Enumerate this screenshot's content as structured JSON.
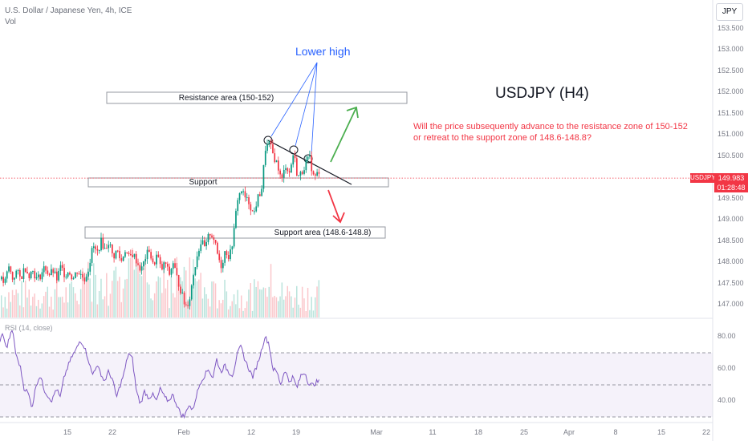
{
  "header": {
    "symbol_line": "U.S. Dollar / Japanese Yen, 4h, ICE",
    "vol_label": "Vol"
  },
  "currency_button": "JPY",
  "price_badge": {
    "symbol": "USDJPY",
    "price": "149.983",
    "countdown": "01:28:48"
  },
  "annotations": {
    "lower_high": "Lower high",
    "resistance_label": "Resistance area (150-152)",
    "support_label": "Support",
    "support_area_label": "Support area (148.6-148.8)",
    "title": "USDJPY (H4)",
    "question_line1": "Will the price subsequently advance to the resistance zone of 150-152",
    "question_line2": "or retreat to the support zone of 148.6-148.8?"
  },
  "rsi_label": "RSI (14, close)",
  "colors": {
    "up": "#089981",
    "down": "#f23645",
    "trend": "#131722",
    "rsi": "#7e57c2",
    "blue": "#2962ff",
    "arrow_up": "#4caf50"
  },
  "chart_data": [
    {
      "type": "candlestick",
      "y_ticks": [
        "153.500",
        "153.000",
        "152.500",
        "152.000",
        "151.500",
        "151.000",
        "150.500",
        "150.000",
        "149.500",
        "149.000",
        "148.500",
        "148.000",
        "147.500",
        "147.000"
      ],
      "x_ticks": [
        "15",
        "22",
        "Feb",
        "12",
        "19",
        "Mar",
        "11",
        "18",
        "25",
        "Apr",
        "8",
        "15",
        "22"
      ],
      "ylim": [
        146.75,
        153.8
      ],
      "last_price": 149.983,
      "zones": [
        {
          "name": "Resistance area (150-152)",
          "low": 151.85,
          "high": 152.1
        },
        {
          "name": "Support",
          "low": 149.95,
          "high": 150.1
        },
        {
          "name": "Support area (148.6-148.8)",
          "low": 148.6,
          "high": 148.8
        }
      ],
      "close_path": [
        [
          0,
          147.6
        ],
        [
          5,
          147.5
        ],
        [
          10,
          147.9
        ],
        [
          15,
          147.6
        ],
        [
          20,
          147.8
        ],
        [
          25,
          147.6
        ],
        [
          30,
          147.9
        ],
        [
          35,
          147.7
        ],
        [
          40,
          147.8
        ],
        [
          45,
          147.6
        ],
        [
          50,
          147.7
        ],
        [
          55,
          147.9
        ],
        [
          60,
          147.7
        ],
        [
          65,
          147.8
        ],
        [
          70,
          147.6
        ],
        [
          75,
          147.9
        ],
        [
          80,
          147.7
        ],
        [
          85,
          147.8
        ],
        [
          90,
          147.6
        ],
        [
          95,
          147.8
        ],
        [
          100,
          147.7
        ],
        [
          105,
          147.6
        ],
        [
          110,
          147.9
        ],
        [
          115,
          148.4
        ],
        [
          120,
          148.2
        ],
        [
          125,
          148.5
        ],
        [
          130,
          148.3
        ],
        [
          135,
          148.5
        ],
        [
          140,
          148.1
        ],
        [
          145,
          148.3
        ],
        [
          150,
          148.0
        ],
        [
          155,
          148.3
        ],
        [
          160,
          148.1
        ],
        [
          165,
          148.2
        ],
        [
          170,
          148.0
        ],
        [
          175,
          147.8
        ],
        [
          180,
          148.1
        ],
        [
          185,
          148.3
        ],
        [
          190,
          147.9
        ],
        [
          195,
          148.2
        ],
        [
          200,
          147.8
        ],
        [
          205,
          148.0
        ],
        [
          210,
          147.7
        ],
        [
          215,
          148.0
        ],
        [
          220,
          147.6
        ],
        [
          225,
          147.3
        ],
        [
          230,
          146.95
        ],
        [
          235,
          147.1
        ],
        [
          240,
          147.7
        ],
        [
          245,
          148.2
        ],
        [
          250,
          148.5
        ],
        [
          255,
          148.3
        ],
        [
          260,
          148.7
        ],
        [
          265,
          148.6
        ],
        [
          270,
          148.2
        ],
        [
          275,
          147.9
        ],
        [
          280,
          148.3
        ],
        [
          285,
          148.1
        ],
        [
          290,
          148.6
        ],
        [
          295,
          149.5
        ],
        [
          300,
          149.7
        ],
        [
          305,
          149.5
        ],
        [
          310,
          149.4
        ],
        [
          315,
          149.1
        ],
        [
          320,
          149.5
        ],
        [
          325,
          149.7
        ],
        [
          330,
          150.7
        ],
        [
          335,
          150.8
        ],
        [
          340,
          150.5
        ],
        [
          345,
          150.3
        ],
        [
          350,
          149.9
        ],
        [
          355,
          150.3
        ],
        [
          360,
          150.1
        ],
        [
          365,
          150.6
        ],
        [
          370,
          150.0
        ],
        [
          375,
          150.1
        ],
        [
          380,
          150.35
        ],
        [
          385,
          150.45
        ],
        [
          390,
          150.0
        ],
        [
          395,
          150.1
        ],
        [
          398,
          149.98
        ]
      ],
      "rsi_ylim": [
        25,
        90
      ],
      "rsi_ticks": [
        "80.00",
        "60.00",
        "40.00"
      ],
      "rsi_levels": [
        70,
        50,
        30
      ],
      "rsi_path": [
        [
          0,
          78
        ],
        [
          4,
          82
        ],
        [
          8,
          72
        ],
        [
          12,
          80
        ],
        [
          16,
          84
        ],
        [
          20,
          68
        ],
        [
          25,
          62
        ],
        [
          30,
          48
        ],
        [
          35,
          45
        ],
        [
          40,
          36
        ],
        [
          45,
          50
        ],
        [
          50,
          56
        ],
        [
          55,
          47
        ],
        [
          60,
          43
        ],
        [
          65,
          40
        ],
        [
          70,
          48
        ],
        [
          75,
          42
        ],
        [
          80,
          55
        ],
        [
          85,
          62
        ],
        [
          90,
          68
        ],
        [
          95,
          72
        ],
        [
          100,
          78
        ],
        [
          105,
          74
        ],
        [
          110,
          66
        ],
        [
          115,
          56
        ],
        [
          120,
          62
        ],
        [
          125,
          58
        ],
        [
          130,
          52
        ],
        [
          135,
          58
        ],
        [
          140,
          54
        ],
        [
          145,
          42
        ],
        [
          150,
          50
        ],
        [
          155,
          58
        ],
        [
          160,
          70
        ],
        [
          165,
          66
        ],
        [
          170,
          46
        ],
        [
          175,
          38
        ],
        [
          180,
          46
        ],
        [
          185,
          42
        ],
        [
          190,
          44
        ],
        [
          195,
          40
        ],
        [
          200,
          48
        ],
        [
          205,
          42
        ],
        [
          210,
          40
        ],
        [
          215,
          44
        ],
        [
          220,
          38
        ],
        [
          225,
          32
        ],
        [
          230,
          30
        ],
        [
          235,
          38
        ],
        [
          240,
          34
        ],
        [
          245,
          44
        ],
        [
          250,
          52
        ],
        [
          255,
          56
        ],
        [
          260,
          60
        ],
        [
          265,
          54
        ],
        [
          270,
          66
        ],
        [
          275,
          58
        ],
        [
          280,
          62
        ],
        [
          285,
          58
        ],
        [
          290,
          56
        ],
        [
          295,
          68
        ],
        [
          300,
          74
        ],
        [
          305,
          66
        ],
        [
          310,
          60
        ],
        [
          315,
          55
        ],
        [
          320,
          62
        ],
        [
          325,
          70
        ],
        [
          330,
          80
        ],
        [
          335,
          76
        ],
        [
          340,
          60
        ],
        [
          345,
          58
        ],
        [
          350,
          50
        ],
        [
          355,
          60
        ],
        [
          360,
          52
        ],
        [
          365,
          55
        ],
        [
          370,
          48
        ],
        [
          375,
          56
        ],
        [
          380,
          58
        ],
        [
          385,
          50
        ],
        [
          390,
          50
        ],
        [
          395,
          52
        ],
        [
          398,
          52
        ]
      ]
    }
  ]
}
